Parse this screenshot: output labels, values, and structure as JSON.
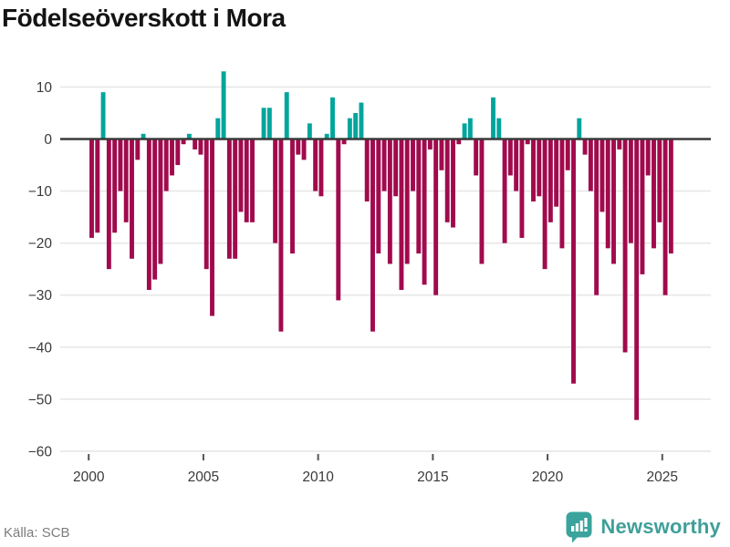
{
  "title": "Födelseöverskott i Mora",
  "footer": {
    "source_label": "Källa: SCB"
  },
  "logo": {
    "text": "Newsworthy"
  },
  "colors": {
    "positive": "#00a59d",
    "negative": "#a10a4d",
    "grid": "#e7e7e7",
    "zero_line": "#3a3a3a",
    "axis_text": "#3a3a3a",
    "title_text": "#141414",
    "source_text": "#7d7d7d",
    "logo_teal": "#3f9f99"
  },
  "chart_data": {
    "type": "bar",
    "title": "Födelseöverskott i Mora",
    "xlabel": "",
    "ylabel": "",
    "frequency": "quarterly",
    "start_period": "2000Q1",
    "end_period": "2025Q2",
    "xticks": [
      2000,
      2005,
      2010,
      2015,
      2020,
      2025
    ],
    "ytick_labels": [
      "10",
      "0",
      "−10",
      "−20",
      "−30",
      "−40",
      "−50",
      "−60"
    ],
    "yticks": [
      10,
      0,
      -10,
      -20,
      -30,
      -40,
      -50,
      -60
    ],
    "ylim": [
      -60,
      13
    ],
    "grid": true,
    "legend": false,
    "series": [
      {
        "name": "Födelseöverskott",
        "values": [
          -19,
          -18,
          9,
          -25,
          -18,
          -10,
          -16,
          -23,
          -4,
          1,
          -29,
          -27,
          -24,
          -10,
          -7,
          -5,
          -1,
          1,
          -2,
          -3,
          -25,
          -34,
          4,
          13,
          -23,
          -23,
          -14,
          -16,
          -16,
          0,
          6,
          6,
          -20,
          -37,
          9,
          -22,
          -3,
          -4,
          3,
          -10,
          -11,
          1,
          8,
          -31,
          -1,
          4,
          5,
          7,
          -12,
          -37,
          -22,
          -10,
          -24,
          -11,
          -29,
          -24,
          -10,
          -22,
          -28,
          -2,
          -30,
          -6,
          -16,
          -17,
          -1,
          3,
          4,
          -7,
          -24,
          0,
          8,
          4,
          -20,
          -7,
          -10,
          -19,
          -1,
          -12,
          -11,
          -25,
          -16,
          -13,
          -21,
          -6,
          -47,
          4,
          -3,
          -10,
          -30,
          -14,
          -21,
          -24,
          -2,
          -41,
          -20,
          -54,
          -26,
          -7,
          -21,
          -16,
          -30,
          -22
        ]
      }
    ]
  }
}
